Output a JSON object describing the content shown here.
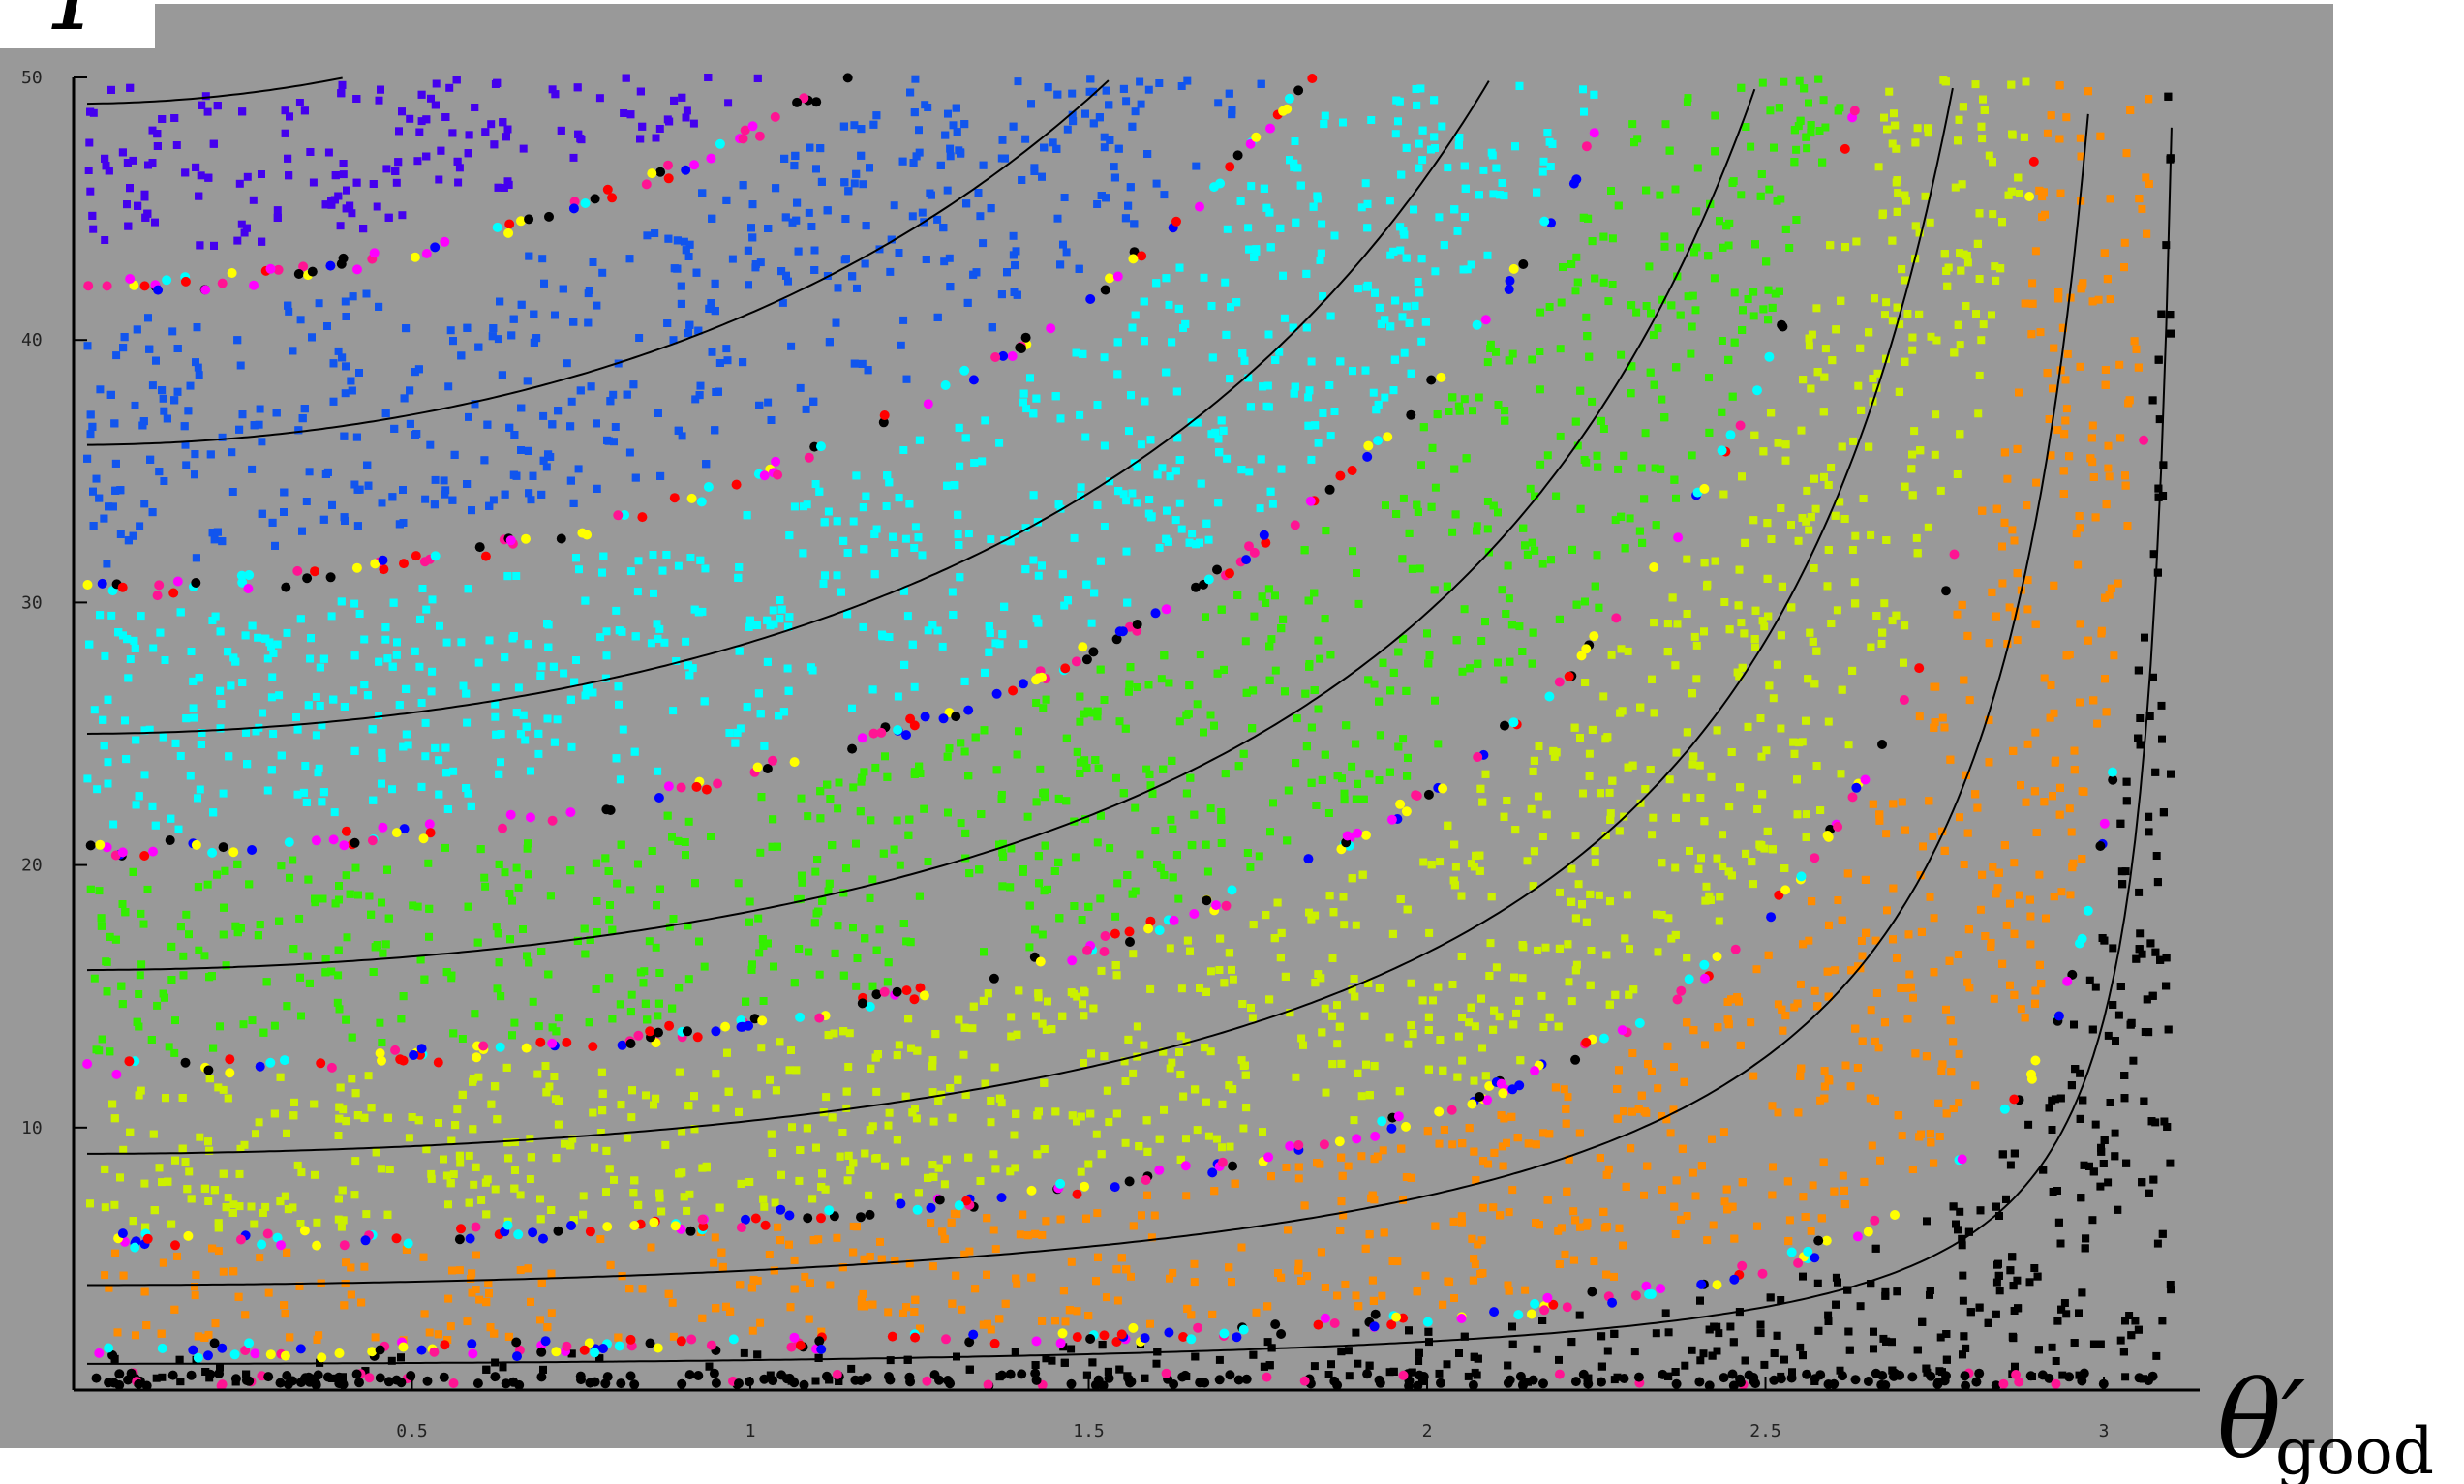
{
  "chart_data": {
    "type": "scatter",
    "title": "",
    "xlabel": "θ′",
    "xlabel_subscript": "good",
    "ylabel": "T",
    "xlim": [
      0,
      3.14159
    ],
    "ylim": [
      0,
      50
    ],
    "x_ticks": [
      "0.5",
      "1",
      "1.5",
      "2",
      "2.5",
      "3"
    ],
    "y_ticks": [
      "10",
      "20",
      "30",
      "40",
      "50"
    ],
    "x_tick_values": [
      0.5,
      1,
      1.5,
      2,
      2.5,
      3
    ],
    "y_tick_values": [
      10,
      20,
      30,
      40,
      50
    ],
    "grid": false,
    "legend": "none",
    "background_color": "#999999",
    "band_colors": [
      "#000000",
      "#ff8c00",
      "#ccf000",
      "#33ee00",
      "#00ffff",
      "#1155ee",
      "#4400ee"
    ],
    "boundary_colors": [
      "#ff1493",
      "#ff00ff",
      "#0000ff",
      "#ff0000",
      "#ffff00",
      "#00ffff",
      "#000000"
    ],
    "curves_T0": [
      1,
      4,
      9,
      16,
      25,
      36,
      49
    ],
    "band_edges_T0": [
      1.5,
      5.7,
      12.3,
      20.6,
      30.5,
      42.0
    ]
  }
}
